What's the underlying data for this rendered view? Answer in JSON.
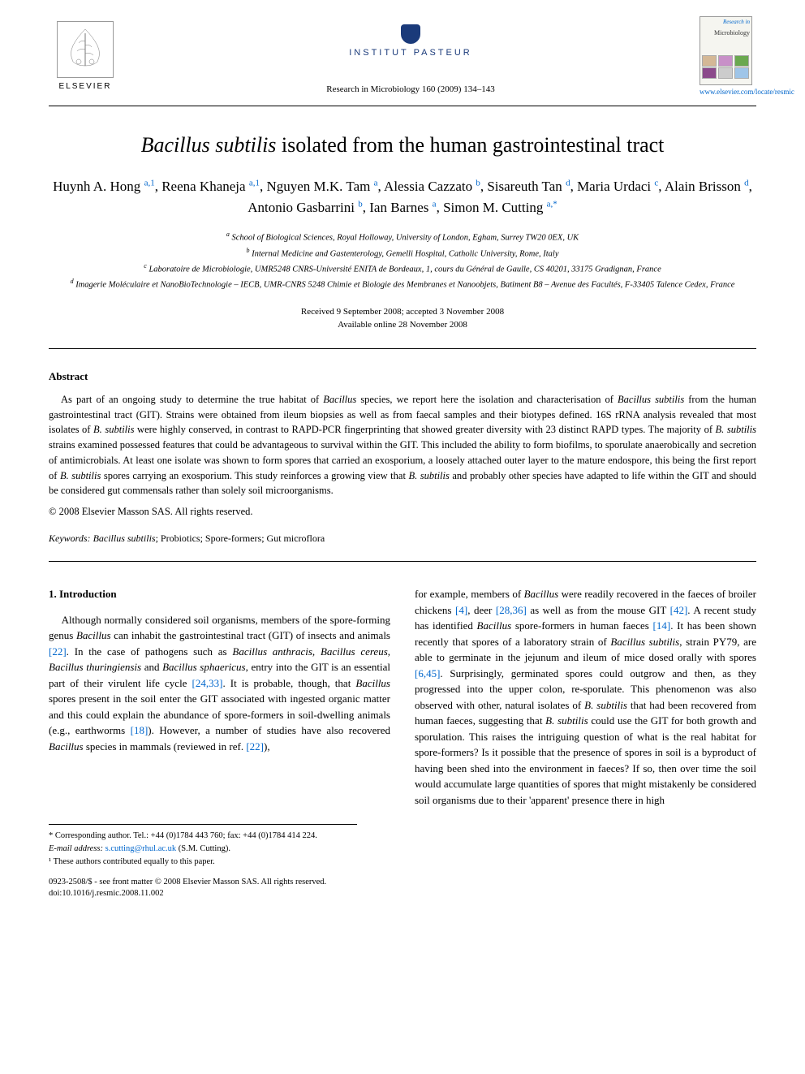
{
  "branding": {
    "elsevier_label": "ELSEVIER",
    "pasteur_text": "INSTITUT PASTEUR",
    "journal_ref": "Research in Microbiology 160 (2009) 134–143",
    "cover_research": "Research in",
    "cover_microbio": "Microbiology",
    "journal_link": "www.elsevier.com/locate/resmic"
  },
  "title": {
    "species": "Bacillus subtilis",
    "rest": " isolated from the human gastrointestinal tract"
  },
  "authors_html": "Huynh A. Hong <sup>a,1</sup>, Reena Khaneja <sup>a,1</sup>, Nguyen M.K. Tam <sup>a</sup>, Alessia Cazzato <sup>b</sup>, Sisareuth Tan <sup>d</sup>, Maria Urdaci <sup>c</sup>, Alain Brisson <sup>d</sup>, Antonio Gasbarrini <sup>b</sup>, Ian Barnes <sup>a</sup>, Simon M. Cutting <sup>a,*</sup>",
  "affiliations": {
    "a": "School of Biological Sciences, Royal Holloway, University of London, Egham, Surrey TW20 0EX, UK",
    "b": "Internal Medicine and Gastenterology, Gemelli Hospital, Catholic University, Rome, Italy",
    "c": "Laboratoire de Microbiologie, UMR5248 CNRS-Université ENITA de Bordeaux, 1, cours du Général de Gaulle, CS 40201, 33175 Gradignan, France",
    "d": "Imagerie Moléculaire et NanoBioTechnologie – IECB, UMR-CNRS 5248 Chimie et Biologie des Membranes et Nanoobjets, Batiment B8 – Avenue des Facultés, F-33405 Talence Cedex, France"
  },
  "dates": {
    "received": "Received 9 September 2008; accepted 3 November 2008",
    "online": "Available online 28 November 2008"
  },
  "abstract": {
    "heading": "Abstract",
    "text_html": "As part of an ongoing study to determine the true habitat of <span class=\"species\">Bacillus</span> species, we report here the isolation and characterisation of <span class=\"species\">Bacillus subtilis</span> from the human gastrointestinal tract (GIT). Strains were obtained from ileum biopsies as well as from faecal samples and their biotypes defined. 16S rRNA analysis revealed that most isolates of <span class=\"species\">B. subtilis</span> were highly conserved, in contrast to RAPD-PCR fingerprinting that showed greater diversity with 23 distinct RAPD types. The majority of <span class=\"species\">B. subtilis</span> strains examined possessed features that could be advantageous to survival within the GIT. This included the ability to form biofilms, to sporulate anaerobically and secretion of antimicrobials. At least one isolate was shown to form spores that carried an exosporium, a loosely attached outer layer to the mature endospore, this being the first report of <span class=\"species\">B. subtilis</span> spores carrying an exosporium. This study reinforces a growing view that <span class=\"species\">B. subtilis</span> and probably other species have adapted to life within the GIT and should be considered gut commensals rather than solely soil microorganisms.",
    "copyright": "© 2008 Elsevier Masson SAS. All rights reserved."
  },
  "keywords": {
    "label": "Keywords:",
    "text_html": " <span class=\"species\">Bacillus subtilis</span>; Probiotics; Spore-formers; Gut microflora"
  },
  "body": {
    "intro_heading": "1. Introduction",
    "col1_html": "Although normally considered soil organisms, members of the spore-forming genus <span class=\"species\">Bacillus</span> can inhabit the gastrointestinal tract (GIT) of insects and animals <span class=\"ref\">[22]</span>. In the case of pathogens such as <span class=\"species\">Bacillus anthracis</span>, <span class=\"species\">Bacillus cereus</span>, <span class=\"species\">Bacillus thuringiensis</span> and <span class=\"species\">Bacillus sphaericus</span>, entry into the GIT is an essential part of their virulent life cycle <span class=\"ref\">[24,33]</span>. It is probable, though, that <span class=\"species\">Bacillus</span> spores present in the soil enter the GIT associated with ingested organic matter and this could explain the abundance of spore-formers in soil-dwelling animals (e.g., earthworms <span class=\"ref\">[18]</span>). However, a number of studies have also recovered <span class=\"species\">Bacillus</span> species in mammals (reviewed in ref. <span class=\"ref\">[22]</span>),",
    "col2_html": "for example, members of <span class=\"species\">Bacillus</span> were readily recovered in the faeces of broiler chickens <span class=\"ref\">[4]</span>, deer <span class=\"ref\">[28,36]</span> as well as from the mouse GIT <span class=\"ref\">[42]</span>. A recent study has identified <span class=\"species\">Bacillus</span> spore-formers in human faeces <span class=\"ref\">[14]</span>. It has been shown recently that spores of a laboratory strain of <span class=\"species\">Bacillus subtilis</span>, strain PY79, are able to germinate in the jejunum and ileum of mice dosed orally with spores <span class=\"ref\">[6,45]</span>. Surprisingly, germinated spores could outgrow and then, as they progressed into the upper colon, re-sporulate. This phenomenon was also observed with other, natural isolates of <span class=\"species\">B. subtilis</span> that had been recovered from human faeces, suggesting that <span class=\"species\">B. subtilis</span> could use the GIT for both growth and sporulation. This raises the intriguing question of what is the real habitat for spore-formers? Is it possible that the presence of spores in soil is a byproduct of having been shed into the environment in faeces? If so, then over time the soil would accumulate large quantities of spores that might mistakenly be considered soil organisms due to their 'apparent' presence there in high"
  },
  "footnotes": {
    "corresponding": "* Corresponding author. Tel.: +44 (0)1784 443 760; fax: +44 (0)1784 414 224.",
    "email_label": "E-mail address:",
    "email": "s.cutting@rhul.ac.uk",
    "email_name": " (S.M. Cutting).",
    "equal": "¹ These authors contributed equally to this paper."
  },
  "footer": {
    "line1": "0923-2508/$ - see front matter © 2008 Elsevier Masson SAS. All rights reserved.",
    "line2": "doi:10.1016/j.resmic.2008.11.002"
  },
  "colors": {
    "link": "#0066cc",
    "pasteur": "#1a3a7a",
    "text": "#000000",
    "cover_bg": "#f5f5f0"
  },
  "cover_img_colors": [
    "#d4b896",
    "#c890c8",
    "#6aa84f",
    "#8b4a8b",
    "#cccccc",
    "#9fc5e8"
  ]
}
